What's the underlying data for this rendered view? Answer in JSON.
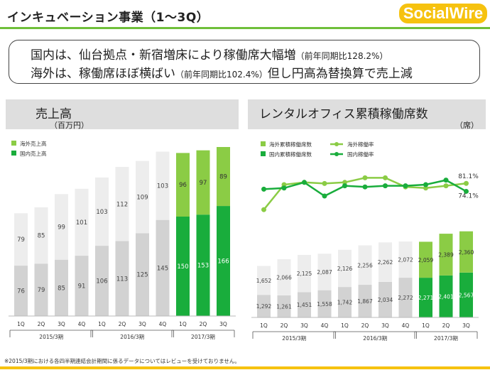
{
  "page": {
    "title": "インキュベーション事業（1～3Q）",
    "logo": "SocialWire",
    "headline_line1_main": "国内は、仙台拠点・新宿増床により稼働席大幅増",
    "headline_line1_note": "（前年同期比128.2%）",
    "headline_line2_main": "海外は、稼働席ほぼ横ばい",
    "headline_line2_note": "（前年同期比102.4%）",
    "headline_line2_tail": "但し円高為替換算で売上減",
    "footnote": "※2015/3期における各四半期連結会計期間に係るデータについてはレビューを受けておりません。"
  },
  "colors": {
    "accent_green": "#6fbf3a",
    "brand_yellow": "#f6c20f",
    "domestic_dark_green": "#19ad3c",
    "overseas_light_green": "#8bcc45",
    "past_domestic_gray": "#d2d2d2",
    "past_overseas_gray": "#ededed"
  },
  "chart_data": [
    {
      "type": "bar",
      "stacked": true,
      "title": "売上高",
      "unit": "（百万円）",
      "legend_position": "top-left",
      "categories": [
        "1Q",
        "2Q",
        "3Q",
        "4Q",
        "1Q",
        "2Q",
        "3Q",
        "4Q",
        "1Q",
        "2Q",
        "3Q"
      ],
      "groups": [
        {
          "label": "2015/3期",
          "count": 4
        },
        {
          "label": "2016/3期",
          "count": 4
        },
        {
          "label": "2017/3期",
          "count": 3
        }
      ],
      "series": [
        {
          "name": "国内売上高",
          "values": [
            76,
            79,
            85,
            91,
            106,
            113,
            125,
            145,
            150,
            153,
            166
          ]
        },
        {
          "name": "海外売上高",
          "values": [
            79,
            85,
            99,
            101,
            103,
            112,
            109,
            103,
            96,
            97,
            89
          ]
        }
      ],
      "ylim": [
        0,
        270
      ]
    },
    {
      "type": "bar",
      "stacked": true,
      "title": "レンタルオフィス累積稼働席数",
      "unit": "（席）",
      "legend_position": "top-left",
      "categories": [
        "1Q",
        "2Q",
        "3Q",
        "4Q",
        "1Q",
        "2Q",
        "3Q",
        "4Q",
        "1Q",
        "2Q",
        "3Q"
      ],
      "groups": [
        {
          "label": "2015/3期",
          "count": 4
        },
        {
          "label": "2016/3期",
          "count": 4
        },
        {
          "label": "2017/3期",
          "count": 3
        }
      ],
      "series": [
        {
          "name": "国内累積稼働席数",
          "values": [
            1292,
            1261,
            1451,
            1558,
            1742,
            1867,
            2034,
            2272,
            2271,
            2401,
            2567
          ]
        },
        {
          "name": "海外累積稼働席数",
          "values": [
            1652,
            2066,
            2125,
            2087,
            2126,
            2256,
            2262,
            2072,
            2059,
            2389,
            2360
          ]
        }
      ],
      "ylim": [
        0,
        6500
      ],
      "lines": [
        {
          "name": "海外稼働率",
          "values": [
            58,
            80,
            82,
            81,
            82,
            86,
            86,
            78,
            77,
            79,
            81.1
          ],
          "end_label": "81.1%"
        },
        {
          "name": "国内稼働率",
          "values": [
            76,
            77,
            82,
            70,
            79,
            78,
            79,
            79,
            80,
            84,
            74.1
          ],
          "end_label": "74.1%"
        }
      ],
      "line_ylim": [
        45,
        100
      ]
    }
  ]
}
